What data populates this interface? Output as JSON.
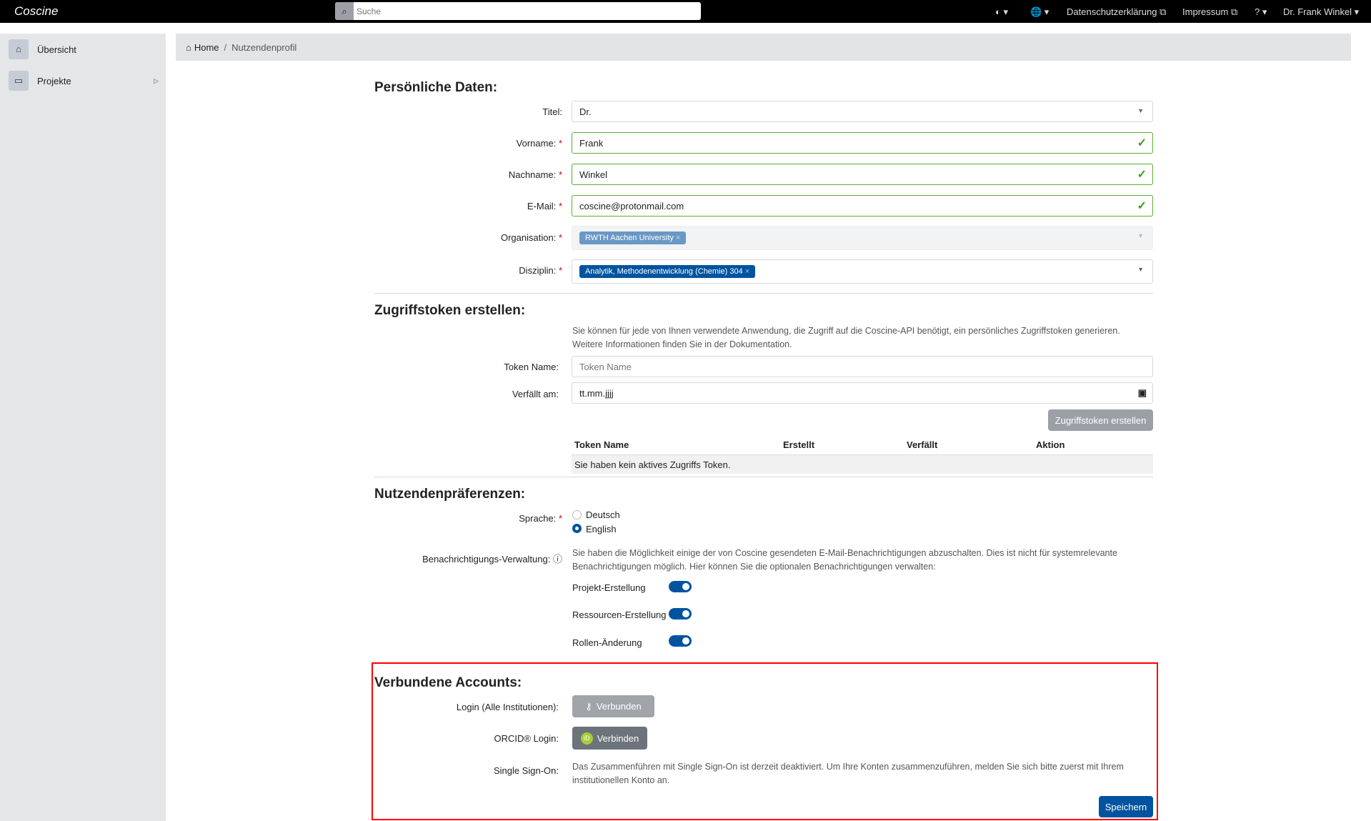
{
  "header": {
    "logo": "Coscine",
    "search_placeholder": "Suche",
    "nav": {
      "theme": "◐ ▾",
      "language": "🌐 ▾",
      "privacy": "Datenschutzerklärung ⧉",
      "imprint": "Impressum ⧉",
      "help": "? ▾",
      "user": "Dr. Frank Winkel ▾"
    }
  },
  "sidebar": {
    "items": [
      {
        "label": "Übersicht",
        "icon": "home-icon"
      },
      {
        "label": "Projekte",
        "icon": "folder-icon"
      }
    ]
  },
  "breadcrumb": {
    "home": "Home",
    "sep": "/",
    "current": "Nutzendenprofil"
  },
  "personal": {
    "heading": "Persönliche Daten:",
    "req": "*",
    "titel": {
      "label": "Titel:",
      "value": "Dr."
    },
    "vorname": {
      "label": "Vorname:",
      "value": "Frank"
    },
    "nachname": {
      "label": "Nachname:",
      "value": "Winkel"
    },
    "email": {
      "label": "E-Mail:",
      "value": "coscine@protonmail.com"
    },
    "organisation": {
      "label": "Organisation:",
      "tag": "RWTH Aachen University"
    },
    "disziplin": {
      "label": "Disziplin:",
      "tag": "Analytik, Methodenentwicklung (Chemie) 304"
    }
  },
  "tokens": {
    "heading": "Zugriffstoken erstellen:",
    "desc1": "Sie können für jede von Ihnen verwendete Anwendung, die Zugriff auf die Coscine-API benötigt, ein persönliches Zugriffstoken generieren.",
    "desc2": "Weitere Informationen finden Sie in der Dokumentation.",
    "name_label": "Token Name:",
    "name_placeholder": "Token Name",
    "expiry_label": "Verfällt am:",
    "expiry_placeholder": "tt.mm.jjjj",
    "create_button": "Zugriffstoken erstellen",
    "columns": [
      "Token Name",
      "Erstellt",
      "Verfällt",
      "Aktion"
    ],
    "empty": "Sie haben kein aktives Zugriffs Token."
  },
  "prefs": {
    "heading": "Nutzendenpräferenzen:",
    "language_label": "Sprache:",
    "languages": [
      "Deutsch",
      "English"
    ],
    "selected_language": "English",
    "notif_label": "Benachrichtigungs-Verwaltung:",
    "notif_desc1": "Sie haben die Möglichkeit einige der von Coscine gesendeten E-Mail-Benachrichtigungen abzuschalten. Dies ist nicht für systemrelevante",
    "notif_desc2": "Benachrichtigungen möglich. Hier können Sie die optionalen Benachrichtigungen verwalten:",
    "toggles": [
      {
        "label": "Projekt-Erstellung",
        "on": true
      },
      {
        "label": "Ressourcen-Erstellung",
        "on": true
      },
      {
        "label": "Rollen-Änderung",
        "on": true
      }
    ]
  },
  "accounts": {
    "heading": "Verbundene Accounts:",
    "login_label": "Login (Alle Institutionen):",
    "login_button": "Verbunden",
    "orcid_label": "ORCID® Login:",
    "orcid_button": "Verbinden",
    "orcid_icon": "iD",
    "sso_label": "Single Sign-On:",
    "sso_desc1": "Das Zusammenführen mit Single Sign-On ist derzeit deaktiviert. Um Ihre Konten zusammenzuführen, melden Sie sich bitte zuerst mit Ihrem",
    "sso_desc2": "institutionellen Konto an.",
    "save_button": "Speichern"
  },
  "colors": {
    "primary": "#00549f",
    "highlight": "#ff0000",
    "valid": "#5aad2e"
  }
}
